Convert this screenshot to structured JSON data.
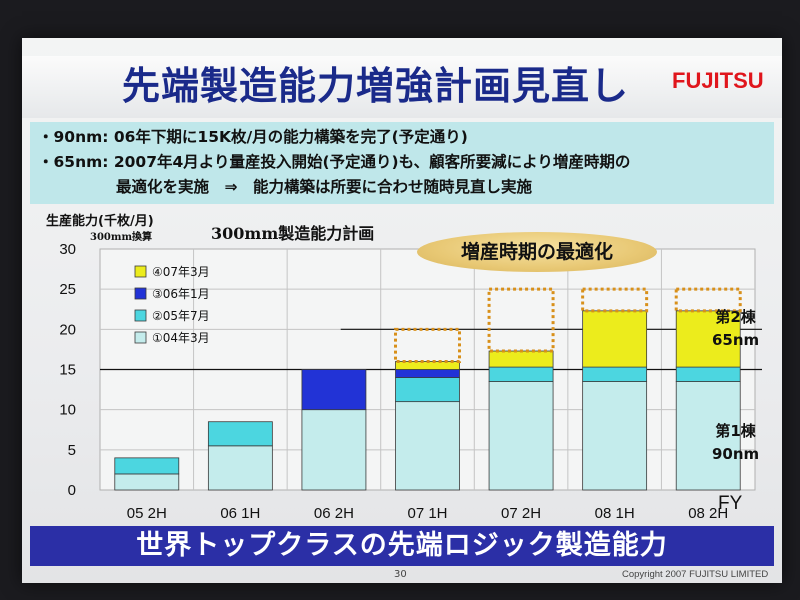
{
  "slide": {
    "title": "先端製造能力増強計画見直し",
    "logo": "FUJITSU",
    "bullets": [
      "・90nm: 06年下期に15K枚/月の能力構築を完了(予定通り)",
      "・65nm: 2007年4月より量産投入開始(予定通り)も、顧客所要減により増産時期の",
      "最適化を実施　⇒　能力構築は所要に合わせ随時見直し実施"
    ],
    "bottom_banner": "世界トップクラスの先端ロジック製造能力",
    "page_number": "30",
    "copyright": "Copyright 2007 FUJITSU LIMITED"
  },
  "colors": {
    "seg1": "#c4ecec",
    "seg2": "#4cd6e0",
    "seg3": "#2233d6",
    "seg4": "#ecec1c",
    "dotted": "#d8901a",
    "title": "#1a2a8a",
    "banner": "#2b2fa6",
    "logo": "#e0151c"
  },
  "chart_data": {
    "type": "bar",
    "stacked": true,
    "title": "300mm製造能力計画",
    "ylabel": "生産能力(千枚/月)",
    "ylabel_sub": "300mm換算",
    "xlabel": "FY",
    "ylim": [
      0,
      30
    ],
    "yticks": [
      0,
      5,
      10,
      15,
      20,
      25,
      30
    ],
    "categories": [
      "05 2H",
      "06 1H",
      "06 2H",
      "07 1H",
      "07 2H",
      "08 1H",
      "08 2H"
    ],
    "series": [
      {
        "name": "①04年3月",
        "values": [
          2,
          5.5,
          10,
          11,
          13.5,
          13.5,
          13.5
        ]
      },
      {
        "name": "②05年7月",
        "values": [
          2,
          3,
          0,
          3,
          1.8,
          1.8,
          1.8
        ]
      },
      {
        "name": "③06年1月",
        "values": [
          0,
          0,
          5,
          1,
          0,
          0,
          0
        ]
      },
      {
        "name": "④07年3月",
        "values": [
          0,
          0,
          0,
          1,
          2,
          7,
          7
        ]
      }
    ],
    "planned_total": [
      null,
      null,
      null,
      20,
      25,
      25,
      25
    ],
    "reference_lines": [
      15,
      20
    ],
    "legend": [
      "④07年3月",
      "③06年1月",
      "②05年7月",
      "①04年3月"
    ],
    "legend_position": "top-left",
    "annotation": "増産時期の最適化",
    "side_labels": [
      {
        "name": "第2棟",
        "sub": "65nm"
      },
      {
        "name": "第1棟",
        "sub": "90nm"
      }
    ]
  }
}
